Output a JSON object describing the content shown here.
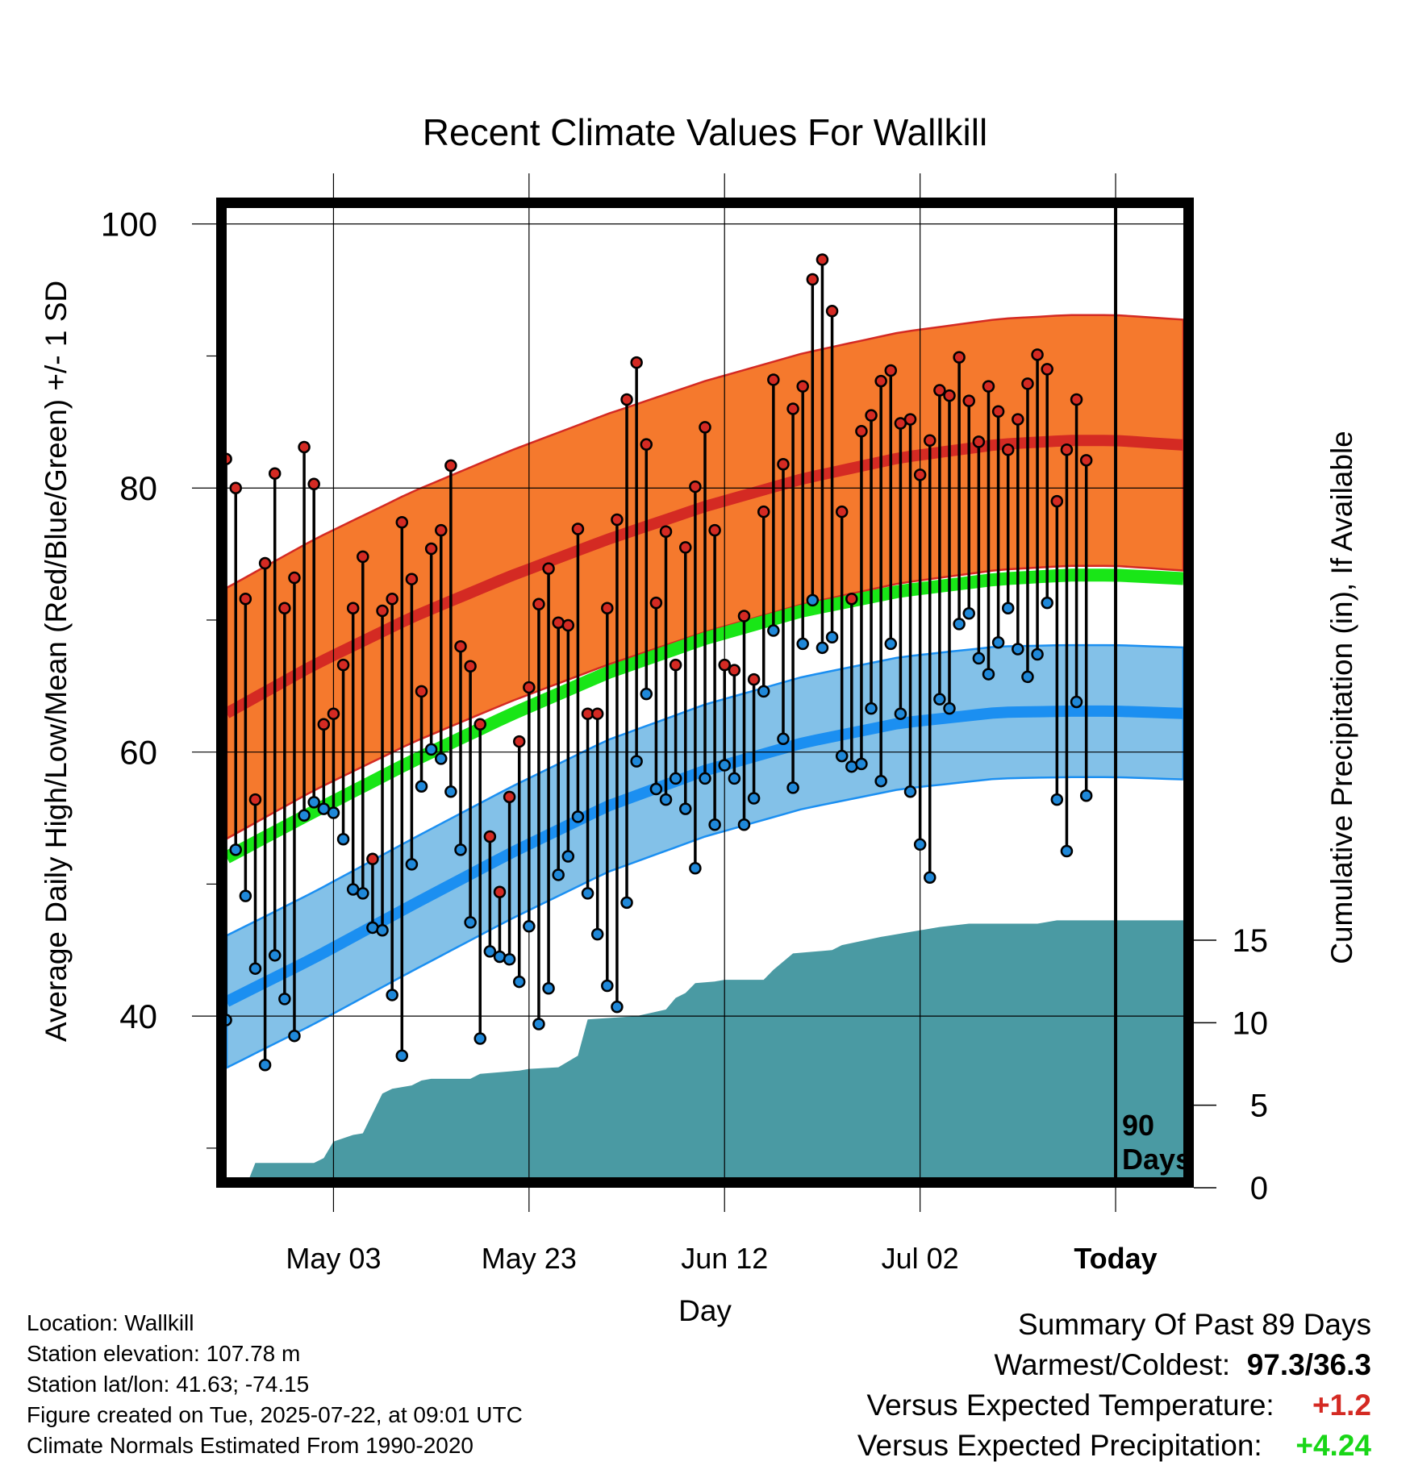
{
  "chart_data": {
    "type": "line",
    "title": "Recent Climate Values For Wallkill",
    "xlabel": "Day",
    "ylabel": "Average Daily High/Low/Mean (Red/Blue/Green) +/- 1 SD",
    "y2label": "Cumulative Precipitation (in), If Available",
    "x_tick_labels": [
      "May 03",
      "May 23",
      "Jun 12",
      "Jul 02",
      "Today"
    ],
    "x_tick_days": [
      12,
      32,
      52,
      72,
      92
    ],
    "x_range_days": [
      0,
      100
    ],
    "y_ticks": [
      40,
      60,
      80,
      100
    ],
    "ylim": [
      27,
      102
    ],
    "y2_ticks": [
      0,
      5,
      10,
      15
    ],
    "y2lim": [
      0,
      60
    ],
    "today_label": "90 Days",
    "grid": true,
    "colors": {
      "high": "#d42a23",
      "high_band": "#f5792d",
      "low": "#1b8ff1",
      "low_band": "#83c1e8",
      "mean": "#19e617",
      "precip": "#4a9aa3",
      "high_dot": "#d42a23",
      "low_dot": "#1f88d9"
    },
    "normals": {
      "days": [
        0,
        10,
        20,
        30,
        40,
        50,
        60,
        70,
        80,
        87,
        92,
        100
      ],
      "high_mean": [
        62.5,
        66.6,
        70.2,
        73.3,
        76.1,
        78.6,
        80.7,
        82.3,
        83.3,
        83.6,
        83.6,
        83.2
      ],
      "high_sd": 9.5,
      "low_mean": [
        40.7,
        44.4,
        48.4,
        52.3,
        55.9,
        58.6,
        60.7,
        62.2,
        63.0,
        63.1,
        63.1,
        62.9
      ],
      "low_sd": 5.0,
      "mean": [
        51.6,
        55.5,
        59.3,
        62.8,
        66.0,
        68.6,
        70.7,
        72.2,
        73.1,
        73.4,
        73.4,
        73.1
      ]
    },
    "series": [
      {
        "name": "High",
        "start_day": 1,
        "values": [
          82.2,
          80.0,
          71.6,
          56.4,
          74.3,
          81.1,
          70.9,
          73.2,
          83.1,
          80.3,
          62.1,
          62.9,
          66.6,
          70.9,
          74.8,
          51.9,
          70.7,
          71.6,
          77.4,
          73.1,
          64.6,
          75.4,
          76.8,
          81.7,
          68.0,
          66.5,
          62.1,
          53.6,
          49.4,
          56.6,
          60.8,
          64.9,
          71.2,
          73.9,
          69.8,
          69.6,
          76.9,
          62.9,
          62.9,
          70.9,
          77.6,
          86.7,
          89.5,
          83.3,
          71.3,
          76.7,
          66.6,
          75.5,
          80.1,
          84.6,
          76.8,
          66.6,
          66.2,
          70.3,
          65.5,
          78.2,
          88.2,
          81.8,
          86.0,
          87.7,
          95.8,
          97.3,
          93.4,
          78.2,
          71.6,
          84.3,
          85.5,
          88.1,
          88.9,
          84.9,
          85.2,
          81.0,
          83.6,
          87.4,
          87.0,
          89.9,
          86.6,
          83.5,
          87.7,
          85.8,
          82.9,
          85.2,
          87.9,
          90.1,
          89.0,
          79.0,
          82.9,
          86.7,
          82.1
        ]
      },
      {
        "name": "Low",
        "start_day": 1,
        "values": [
          39.7,
          52.6,
          49.1,
          43.6,
          36.3,
          44.6,
          41.3,
          38.5,
          55.2,
          56.2,
          55.7,
          55.4,
          53.4,
          49.6,
          49.3,
          46.7,
          46.5,
          41.6,
          37.0,
          51.5,
          57.4,
          60.2,
          59.5,
          57.0,
          52.6,
          47.1,
          38.3,
          44.9,
          44.5,
          44.3,
          42.6,
          46.8,
          39.4,
          42.1,
          50.7,
          52.1,
          55.1,
          49.3,
          46.2,
          42.3,
          40.7,
          48.6,
          59.3,
          64.4,
          57.2,
          56.4,
          58.0,
          55.7,
          51.2,
          58.0,
          54.5,
          59.0,
          58.0,
          54.5,
          56.5,
          64.6,
          69.2,
          61.0,
          57.3,
          68.2,
          71.5,
          67.9,
          68.7,
          59.7,
          58.9,
          59.1,
          63.3,
          57.8,
          68.2,
          62.9,
          57.0,
          53.0,
          50.5,
          64.0,
          63.3,
          69.7,
          70.5,
          67.1,
          65.9,
          68.3,
          70.9,
          67.8,
          65.7,
          67.4,
          71.3,
          56.4,
          52.5,
          63.8,
          56.7
        ]
      },
      {
        "name": "Cumulative Precipitation",
        "axis": "right",
        "days": [
          0,
          3,
          4,
          10,
          11,
          12,
          14,
          15,
          17,
          18,
          20,
          21,
          22,
          26,
          27,
          31,
          32,
          35,
          37,
          38,
          43,
          46,
          47,
          48,
          49,
          51,
          52,
          56,
          57,
          59,
          63,
          64,
          68,
          69,
          71,
          74,
          77,
          84,
          86,
          92,
          99,
          100
        ],
        "values": [
          0,
          0,
          1.5,
          1.5,
          1.8,
          2.8,
          3.2,
          3.3,
          5.7,
          6.0,
          6.2,
          6.5,
          6.6,
          6.6,
          6.9,
          7.1,
          7.2,
          7.3,
          8.0,
          10.2,
          10.4,
          10.8,
          11.5,
          11.8,
          12.4,
          12.5,
          12.6,
          12.6,
          13.2,
          14.2,
          14.4,
          14.7,
          15.2,
          15.3,
          15.5,
          15.8,
          16.0,
          16.0,
          16.2,
          16.2,
          16.2,
          16.2
        ]
      }
    ]
  },
  "footer": {
    "location": "Location: Wallkill",
    "elevation": "Station elevation: 107.78 m",
    "latlon": "Station lat/lon: 41.63; -74.15",
    "created": "Figure created on Tue, 2025-07-22, at 09:01 UTC",
    "normals": "Climate Normals Estimated From 1990-2020"
  },
  "summary": {
    "title": "Summary Of Past 89 Days",
    "warm_cold_label": "Warmest/Coldest:",
    "warm_cold_value": "97.3/36.3",
    "temp_label": "Versus Expected Temperature:",
    "temp_value": "+1.2",
    "temp_color": "#d42a23",
    "precip_label": "Versus Expected Precipitation:",
    "precip_value": "+4.24",
    "precip_color": "#19d617"
  }
}
